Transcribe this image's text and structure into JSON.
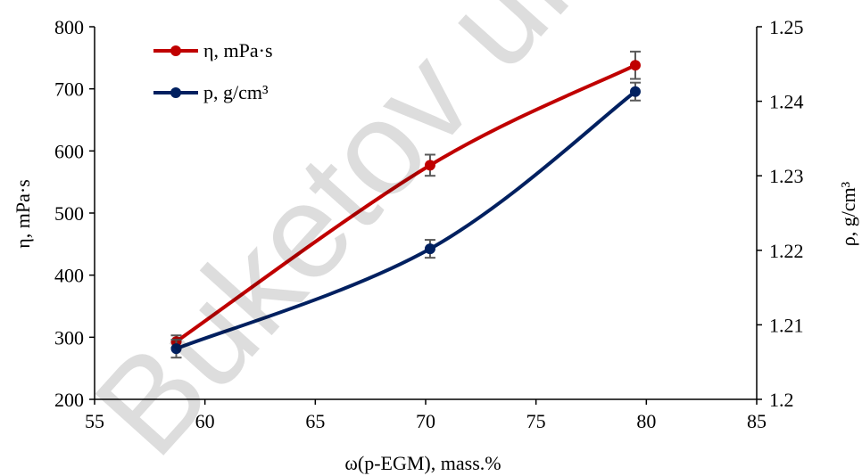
{
  "chart_data": {
    "type": "line",
    "xlabel": "ω(p-EGM), mass.%",
    "ylabel_left": "η, mPa·s",
    "ylabel_right": "ρ, g/cm³",
    "xlim": [
      55,
      85
    ],
    "xticks": [
      "55",
      "60",
      "65",
      "70",
      "75",
      "80",
      "85"
    ],
    "ylim_left": [
      200,
      800
    ],
    "yticks_left": [
      "200",
      "300",
      "400",
      "500",
      "600",
      "700",
      "800"
    ],
    "ylim_right": [
      1.2,
      1.25
    ],
    "yticks_right": [
      "1.2",
      "1.21",
      "1.22",
      "1.23",
      "1.24",
      "1.25"
    ],
    "legend_position": "top-left",
    "series": [
      {
        "name": "η, mPa·s",
        "axis": "left",
        "color": "#c00000",
        "x": [
          58.7,
          70.2,
          79.5
        ],
        "y": [
          293,
          577,
          738
        ],
        "error": [
          10,
          17,
          22
        ]
      },
      {
        "name": "p, g/cm³",
        "axis": "right",
        "color": "#002060",
        "x": [
          58.7,
          70.2,
          79.5
        ],
        "y": [
          1.2068,
          1.2202,
          1.2413
        ],
        "error": [
          0.0012,
          0.0012,
          0.0012
        ]
      }
    ],
    "watermark": "Buketov uni"
  }
}
